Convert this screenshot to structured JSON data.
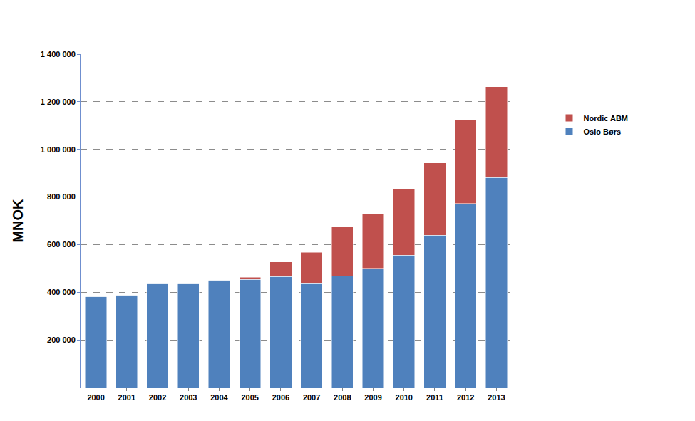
{
  "chart_data": {
    "type": "bar",
    "stacked": true,
    "grid": true,
    "legend": "right",
    "y_label": "MNOK",
    "categories": [
      "2000",
      "2001",
      "2002",
      "2003",
      "2004",
      "2005",
      "2006",
      "2007",
      "2008",
      "2009",
      "2010",
      "2011",
      "2012",
      "2013"
    ],
    "series": [
      {
        "name": "Oslo Børs",
        "color": "#4f81bd",
        "values": [
          382000,
          388000,
          439000,
          439000,
          451000,
          454000,
          466000,
          439000,
          469000,
          501000,
          555000,
          639000,
          773000,
          881000
        ]
      },
      {
        "name": "Nordic ABM",
        "color": "#c0504d",
        "values": [
          0,
          0,
          0,
          0,
          0,
          9000,
          62000,
          128000,
          206000,
          230000,
          278000,
          304000,
          349000,
          382000
        ]
      }
    ],
    "ylim": [
      0,
      1400000
    ],
    "yticks": [
      {
        "value": 200000,
        "label": "200 000"
      },
      {
        "value": 400000,
        "label": "400 000"
      },
      {
        "value": 600000,
        "label": "600 000"
      },
      {
        "value": 800000,
        "label": "800 000"
      },
      {
        "value": 1000000,
        "label": "1 000 000"
      },
      {
        "value": 1200000,
        "label": "1 200 000"
      },
      {
        "value": 1400000,
        "label": "1 400 000"
      }
    ]
  }
}
